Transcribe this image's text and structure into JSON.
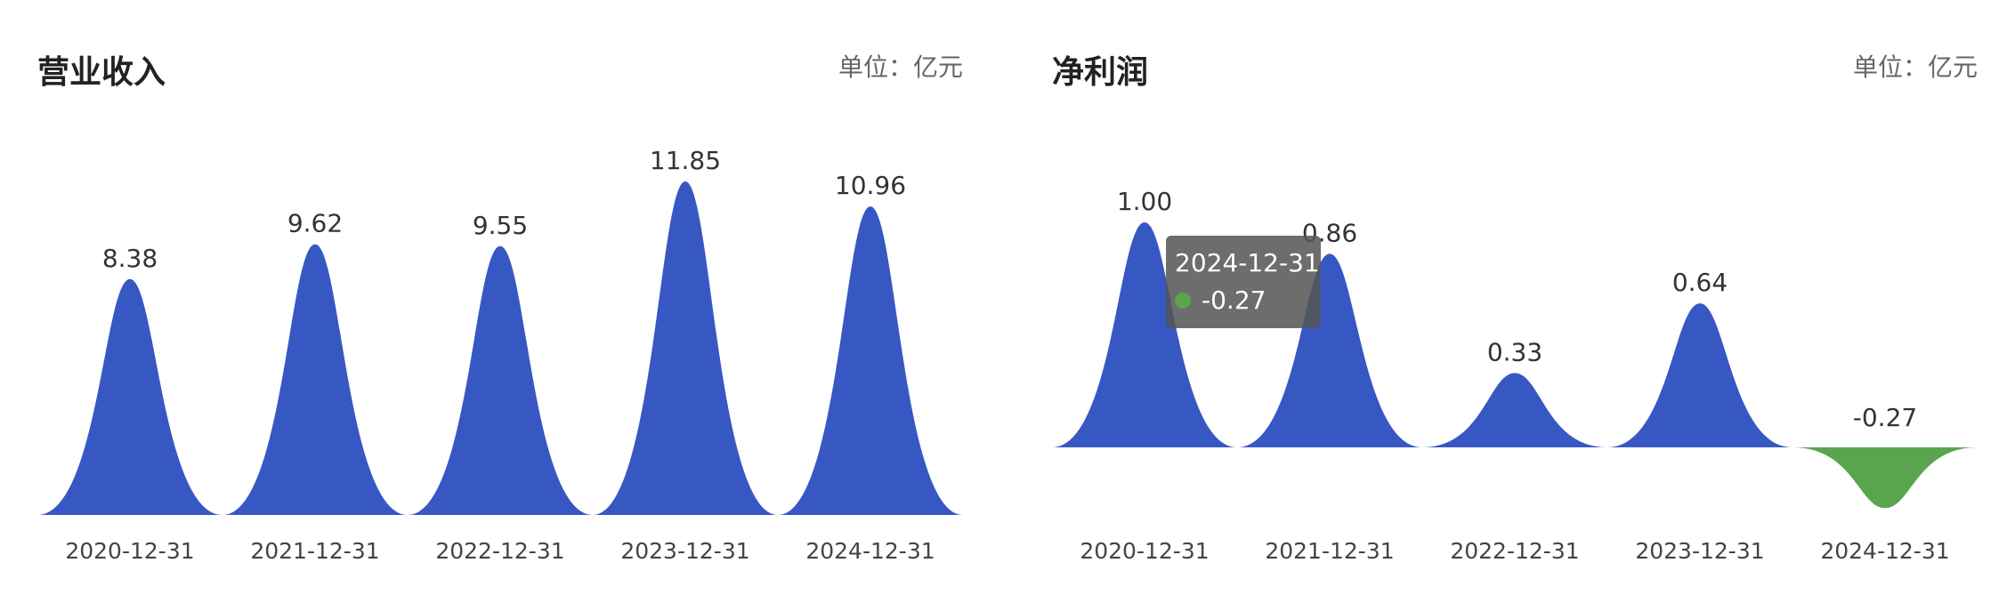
{
  "colors": {
    "positive": "#3758c3",
    "negative": "#58a54d"
  },
  "chart_data": [
    {
      "type": "area",
      "title": "营业收入",
      "unit_label": "单位：亿元",
      "categories": [
        "2020-12-31",
        "2021-12-31",
        "2022-12-31",
        "2023-12-31",
        "2024-12-31"
      ],
      "values": [
        8.38,
        9.62,
        9.55,
        11.85,
        10.96
      ],
      "value_labels": [
        "8.38",
        "9.62",
        "9.55",
        "11.85",
        "10.96"
      ],
      "ylim": [
        0,
        11.85
      ]
    },
    {
      "type": "area",
      "title": "净利润",
      "unit_label": "单位：亿元",
      "categories": [
        "2020-12-31",
        "2021-12-31",
        "2022-12-31",
        "2023-12-31",
        "2024-12-31"
      ],
      "values": [
        1.0,
        0.86,
        0.33,
        0.64,
        -0.27
      ],
      "value_labels": [
        "1.00",
        "0.86",
        "0.33",
        "0.64",
        "-0.27"
      ],
      "ylim": [
        -0.27,
        1.0
      ],
      "tooltip": {
        "date": "2024-12-31",
        "value": "-0.27"
      }
    }
  ]
}
